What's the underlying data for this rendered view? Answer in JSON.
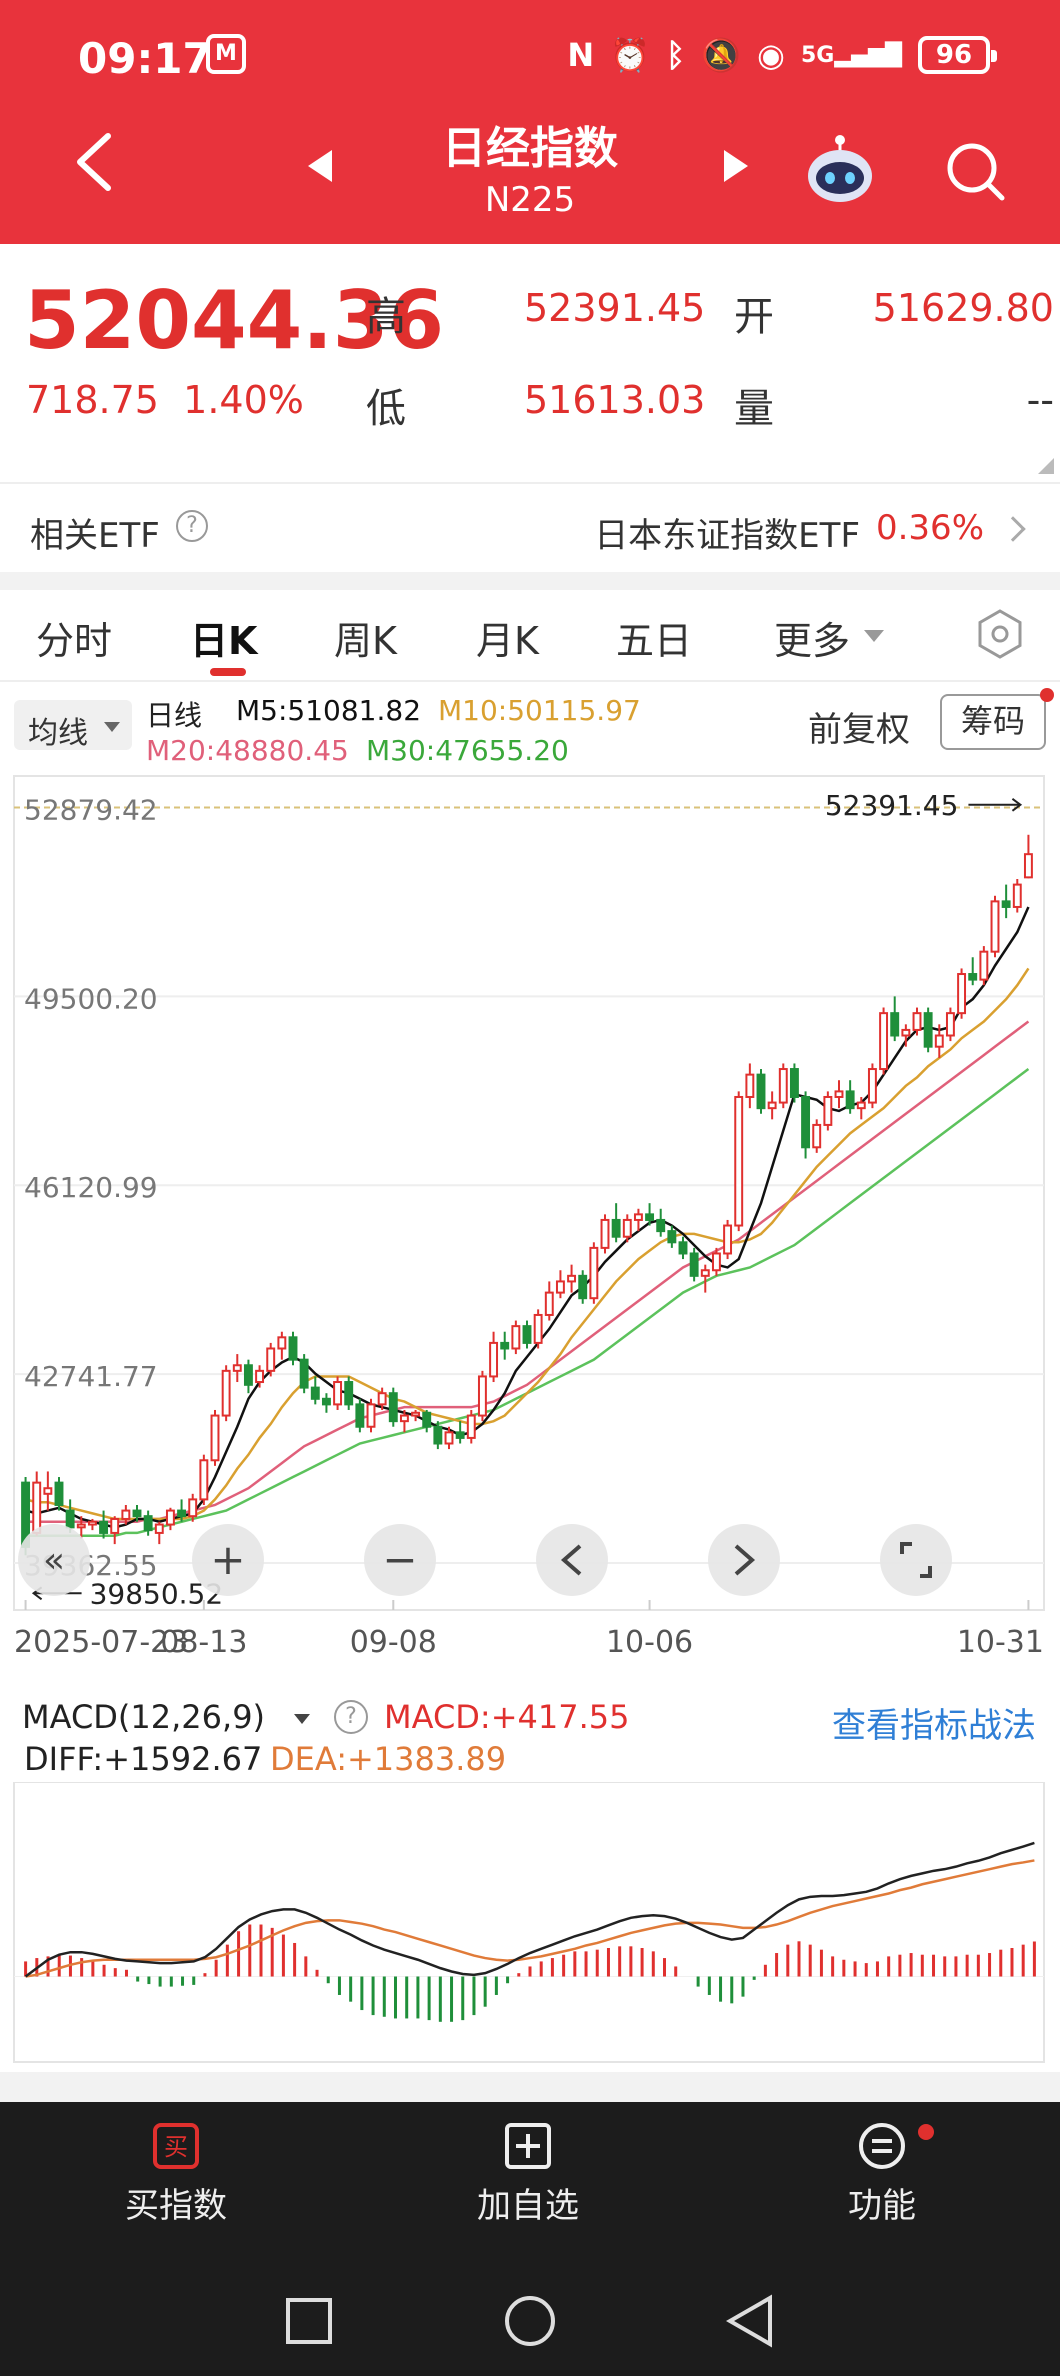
{
  "status_bar": {
    "time": "09:17",
    "carrier_icon": "china-mobile-icon",
    "signal_label": "5G",
    "battery": "96"
  },
  "nav": {
    "title": "日经指数",
    "subtitle": "N225"
  },
  "quote": {
    "price": "52044.36",
    "change": "718.75",
    "change_pct": "1.40%",
    "high_label": "高",
    "high": "52391.45",
    "open_label": "开",
    "open": "51629.80",
    "low_label": "低",
    "low": "51613.03",
    "volume_label": "量",
    "volume": "--"
  },
  "etf": {
    "label": "相关ETF",
    "help": "?",
    "name": "日本东证指数ETF",
    "pct": "0.36%"
  },
  "tabs": [
    {
      "label": "分时"
    },
    {
      "label": "日K"
    },
    {
      "label": "周K"
    },
    {
      "label": "月K"
    },
    {
      "label": "五日"
    },
    {
      "label": "更多"
    }
  ],
  "ma_bar": {
    "selector": "均线",
    "period": "日线",
    "m5": "M5:51081.82",
    "m10": "M10:50115.97",
    "m20": "M20:48880.45",
    "m30": "M30:47655.20",
    "adjust": "前复权",
    "chips": "筹码"
  },
  "colors": {
    "up": "#e0302e",
    "down": "#1f8f3a",
    "m5": "#111111",
    "m10": "#d9a030",
    "m20": "#e0607a",
    "m30": "#5cc25c",
    "header": "#e8333c"
  },
  "chart_data": {
    "type": "candlestick",
    "y_tick_labels": [
      "52879.42",
      "49500.20",
      "46120.99",
      "42741.77",
      "39362.55"
    ],
    "y_ticks": [
      52879.42,
      49500.2,
      46120.99,
      42741.77,
      39362.55
    ],
    "x_tick_labels": [
      "2025-07-23",
      "08-13",
      "09-08",
      "10-06",
      "10-31"
    ],
    "max_label": "52391.45",
    "min_label": "39850.52",
    "ylim": [
      38700,
      53300
    ],
    "candles": [
      [
        40800,
        40900,
        39500,
        39650
      ],
      [
        39900,
        41000,
        39850,
        40800
      ],
      [
        40600,
        41000,
        40300,
        40700
      ],
      [
        40800,
        40900,
        40300,
        40400
      ],
      [
        40300,
        40500,
        39900,
        40000
      ],
      [
        40000,
        40200,
        39800,
        40050
      ],
      [
        40050,
        40150,
        39950,
        40100
      ],
      [
        40100,
        40300,
        39800,
        39900
      ],
      [
        39900,
        40200,
        39700,
        40150
      ],
      [
        40150,
        40400,
        40050,
        40300
      ],
      [
        40300,
        40400,
        40100,
        40200
      ],
      [
        40200,
        40300,
        39850,
        39950
      ],
      [
        39900,
        40100,
        39700,
        40050
      ],
      [
        40050,
        40350,
        39950,
        40300
      ],
      [
        40300,
        40500,
        40100,
        40200
      ],
      [
        40200,
        40600,
        40100,
        40500
      ],
      [
        40500,
        41300,
        40400,
        41200
      ],
      [
        41200,
        42100,
        41100,
        42000
      ],
      [
        42000,
        42900,
        41900,
        42800
      ],
      [
        42800,
        43100,
        42600,
        42900
      ],
      [
        42900,
        43000,
        42400,
        42550
      ],
      [
        42600,
        42900,
        42500,
        42800
      ],
      [
        42800,
        43300,
        42700,
        43200
      ],
      [
        43200,
        43500,
        43000,
        43400
      ],
      [
        43400,
        43500,
        42900,
        43000
      ],
      [
        43000,
        43100,
        42400,
        42500
      ],
      [
        42500,
        42700,
        42200,
        42300
      ],
      [
        42300,
        42400,
        42050,
        42200
      ],
      [
        42200,
        42700,
        42100,
        42600
      ],
      [
        42600,
        42700,
        42100,
        42200
      ],
      [
        42200,
        42300,
        41700,
        41800
      ],
      [
        41800,
        42300,
        41700,
        42200
      ],
      [
        42200,
        42500,
        42100,
        42400
      ],
      [
        42400,
        42500,
        41800,
        41900
      ],
      [
        41900,
        42100,
        41700,
        42000
      ],
      [
        42000,
        42100,
        41900,
        42050
      ],
      [
        42050,
        42100,
        41700,
        41800
      ],
      [
        41800,
        41900,
        41400,
        41500
      ],
      [
        41500,
        41800,
        41400,
        41700
      ],
      [
        41700,
        41900,
        41500,
        41600
      ],
      [
        41600,
        42100,
        41500,
        42000
      ],
      [
        42000,
        42800,
        41900,
        42700
      ],
      [
        42700,
        43500,
        42600,
        43300
      ],
      [
        43300,
        43500,
        43000,
        43200
      ],
      [
        43200,
        43700,
        43100,
        43600
      ],
      [
        43600,
        43700,
        43200,
        43300
      ],
      [
        43300,
        43900,
        43200,
        43800
      ],
      [
        43800,
        44400,
        43700,
        44200
      ],
      [
        44200,
        44600,
        44100,
        44400
      ],
      [
        44400,
        44700,
        44200,
        44500
      ],
      [
        44500,
        44600,
        44000,
        44100
      ],
      [
        44100,
        45100,
        44000,
        45000
      ],
      [
        45000,
        45600,
        44900,
        45500
      ],
      [
        45500,
        45800,
        45100,
        45200
      ],
      [
        45200,
        45600,
        45100,
        45500
      ],
      [
        45500,
        45700,
        45300,
        45600
      ],
      [
        45600,
        45800,
        45400,
        45500
      ],
      [
        45500,
        45700,
        45200,
        45300
      ],
      [
        45300,
        45400,
        45000,
        45100
      ],
      [
        45100,
        45200,
        44800,
        44900
      ],
      [
        44900,
        45000,
        44400,
        44500
      ],
      [
        44500,
        44700,
        44200,
        44600
      ],
      [
        44600,
        45000,
        44500,
        44900
      ],
      [
        44900,
        45500,
        44800,
        45400
      ],
      [
        45400,
        47800,
        45300,
        47700
      ],
      [
        47700,
        48300,
        47500,
        48100
      ],
      [
        48100,
        48200,
        47400,
        47500
      ],
      [
        47500,
        47800,
        47300,
        47600
      ],
      [
        47600,
        48300,
        47500,
        48200
      ],
      [
        48200,
        48300,
        47600,
        47700
      ],
      [
        47700,
        47800,
        46600,
        46800
      ],
      [
        46800,
        47300,
        46700,
        47200
      ],
      [
        47200,
        47800,
        47100,
        47700
      ],
      [
        47700,
        48000,
        47500,
        47800
      ],
      [
        47800,
        48000,
        47400,
        47500
      ],
      [
        47500,
        47700,
        47300,
        47600
      ],
      [
        47600,
        48300,
        47500,
        48200
      ],
      [
        48200,
        49300,
        48100,
        49200
      ],
      [
        49200,
        49500,
        48700,
        48800
      ],
      [
        48800,
        49000,
        48600,
        48900
      ],
      [
        48900,
        49300,
        48800,
        49200
      ],
      [
        49200,
        49300,
        48500,
        48600
      ],
      [
        48600,
        49000,
        48400,
        48800
      ],
      [
        48800,
        49300,
        48700,
        49200
      ],
      [
        49200,
        50000,
        49100,
        49900
      ],
      [
        49900,
        50200,
        49700,
        49800
      ],
      [
        49800,
        50400,
        49700,
        50300
      ],
      [
        50300,
        51300,
        50200,
        51200
      ],
      [
        51200,
        51500,
        50900,
        51100
      ],
      [
        51100,
        51600,
        51000,
        51500
      ],
      [
        51629.8,
        52391.45,
        51613.03,
        52044.36
      ]
    ],
    "ma5": [
      40300,
      40250,
      40300,
      40350,
      40250,
      40150,
      40100,
      40050,
      40000,
      40050,
      40150,
      40150,
      40100,
      40150,
      40200,
      40250,
      40500,
      40900,
      41350,
      41800,
      42300,
      42600,
      42800,
      42950,
      43050,
      42950,
      42750,
      42600,
      42450,
      42400,
      42300,
      42200,
      42150,
      42100,
      42050,
      42000,
      41900,
      41800,
      41750,
      41650,
      41700,
      41850,
      42100,
      42400,
      42800,
      43050,
      43300,
      43550,
      43850,
      44150,
      44300,
      44500,
      44750,
      44950,
      45150,
      45300,
      45450,
      45500,
      45400,
      45250,
      45050,
      44850,
      44700,
      44650,
      44800,
      45300,
      45800,
      46450,
      47100,
      47750,
      47700,
      47650,
      47500,
      47450,
      47550,
      47600,
      47800,
      48100,
      48400,
      48700,
      48900,
      48950,
      48900,
      48950,
      49300,
      49450,
      49700,
      50050,
      50350,
      50650,
      51100
    ],
    "ma10": [
      40500,
      40450,
      40450,
      40400,
      40350,
      40300,
      40250,
      40200,
      40150,
      40150,
      40150,
      40150,
      40150,
      40150,
      40150,
      40200,
      40300,
      40500,
      40750,
      41050,
      41300,
      41600,
      41850,
      42150,
      42400,
      42600,
      42700,
      42700,
      42700,
      42700,
      42600,
      42500,
      42400,
      42300,
      42250,
      42150,
      42050,
      42000,
      41950,
      41900,
      41850,
      41850,
      41900,
      42000,
      42200,
      42400,
      42600,
      42850,
      43100,
      43400,
      43650,
      43900,
      44150,
      44400,
      44600,
      44800,
      44950,
      45100,
      45200,
      45250,
      45250,
      45200,
      45150,
      45100,
      45100,
      45150,
      45250,
      45450,
      45700,
      45950,
      46200,
      46450,
      46650,
      46850,
      47050,
      47200,
      47350,
      47500,
      47700,
      47900,
      48050,
      48250,
      48400,
      48550,
      48750,
      48900,
      49050,
      49250,
      49450,
      49700,
      50000
    ],
    "ma20": [
      40100,
      40100,
      40100,
      40100,
      40100,
      40100,
      40100,
      40100,
      40100,
      40100,
      40100,
      40150,
      40150,
      40200,
      40250,
      40300,
      40350,
      40400,
      40500,
      40600,
      40700,
      40850,
      41000,
      41150,
      41300,
      41450,
      41550,
      41650,
      41750,
      41850,
      41950,
      42000,
      42050,
      42100,
      42150,
      42150,
      42150,
      42150,
      42150,
      42150,
      42150,
      42200,
      42250,
      42350,
      42450,
      42550,
      42700,
      42850,
      43000,
      43150,
      43300,
      43450,
      43600,
      43750,
      43900,
      44050,
      44200,
      44350,
      44500,
      44650,
      44750,
      44850,
      44950,
      45050,
      45150,
      45300,
      45450,
      45600,
      45750,
      45900,
      46050,
      46200,
      46350,
      46500,
      46650,
      46800,
      46950,
      47100,
      47250,
      47400,
      47550,
      47700,
      47850,
      48000,
      48150,
      48300,
      48450,
      48600,
      48750,
      48900,
      49050
    ],
    "ma30": [
      39850,
      39850,
      39850,
      39850,
      39850,
      39850,
      39850,
      39850,
      39850,
      39900,
      39900,
      39950,
      40000,
      40050,
      40100,
      40150,
      40200,
      40250,
      40300,
      40400,
      40500,
      40600,
      40700,
      40800,
      40900,
      41000,
      41100,
      41200,
      41300,
      41400,
      41500,
      41550,
      41600,
      41650,
      41700,
      41750,
      41800,
      41850,
      41900,
      41950,
      42000,
      42050,
      42100,
      42200,
      42300,
      42400,
      42500,
      42600,
      42700,
      42800,
      42900,
      43000,
      43150,
      43300,
      43450,
      43600,
      43750,
      43900,
      44050,
      44200,
      44300,
      44400,
      44500,
      44550,
      44600,
      44650,
      44750,
      44850,
      44950,
      45050,
      45200,
      45350,
      45500,
      45650,
      45800,
      45950,
      46100,
      46250,
      46400,
      46550,
      46700,
      46850,
      47000,
      47150,
      47300,
      47450,
      47600,
      47750,
      47900,
      48050,
      48200
    ]
  },
  "macd": {
    "title": "MACD(12,26,9)",
    "help": "?",
    "macd_value": "MACD:+417.55",
    "diff": "DIFF:+1592.67",
    "dea": "DEA:+1383.89",
    "link": "查看指标战法",
    "ylim": [
      -900,
      2200
    ],
    "diff_series": [
      0,
      100,
      200,
      260,
      290,
      290,
      270,
      240,
      210,
      190,
      180,
      170,
      160,
      160,
      170,
      180,
      230,
      330,
      460,
      590,
      680,
      740,
      780,
      800,
      800,
      760,
      700,
      630,
      560,
      500,
      430,
      370,
      320,
      280,
      240,
      200,
      150,
      100,
      60,
      30,
      20,
      40,
      90,
      150,
      220,
      280,
      330,
      380,
      430,
      480,
      520,
      560,
      610,
      660,
      700,
      720,
      730,
      720,
      690,
      640,
      580,
      520,
      470,
      440,
      460,
      560,
      660,
      760,
      850,
      920,
      950,
      960,
      960,
      970,
      990,
      1010,
      1050,
      1110,
      1160,
      1200,
      1230,
      1260,
      1280,
      1310,
      1350,
      1380,
      1420,
      1470,
      1510,
      1550,
      1592.67
    ],
    "dea_series": [
      0,
      20,
      60,
      100,
      140,
      170,
      190,
      200,
      200,
      200,
      200,
      200,
      200,
      200,
      200,
      200,
      210,
      230,
      270,
      320,
      370,
      430,
      490,
      550,
      600,
      640,
      660,
      670,
      670,
      650,
      630,
      600,
      560,
      530,
      490,
      450,
      410,
      370,
      330,
      290,
      250,
      220,
      200,
      190,
      200,
      220,
      240,
      270,
      300,
      330,
      370,
      400,
      440,
      480,
      520,
      550,
      580,
      610,
      630,
      640,
      640,
      630,
      620,
      600,
      580,
      580,
      590,
      620,
      660,
      710,
      760,
      800,
      840,
      870,
      900,
      930,
      960,
      990,
      1030,
      1060,
      1100,
      1130,
      1160,
      1190,
      1220,
      1250,
      1280,
      1310,
      1340,
      1360,
      1383.89
    ],
    "hist": [
      180,
      220,
      240,
      260,
      250,
      220,
      180,
      140,
      100,
      80,
      -60,
      -90,
      -120,
      -120,
      -110,
      -100,
      40,
      200,
      380,
      540,
      620,
      620,
      580,
      500,
      400,
      240,
      80,
      -80,
      -220,
      -300,
      -400,
      -460,
      -480,
      -500,
      -500,
      -500,
      -520,
      -540,
      -540,
      -520,
      -460,
      -360,
      -220,
      -80,
      40,
      120,
      180,
      220,
      260,
      300,
      300,
      320,
      340,
      360,
      360,
      340,
      300,
      220,
      120,
      0,
      -120,
      -220,
      -300,
      -320,
      -240,
      -40,
      140,
      280,
      380,
      420,
      380,
      320,
      240,
      200,
      180,
      160,
      180,
      240,
      260,
      280,
      260,
      260,
      240,
      240,
      260,
      260,
      280,
      320,
      340,
      380,
      417.55
    ]
  },
  "bottom_bar": {
    "buy_icon": "buy-icon",
    "buy": "买指数",
    "buy_glyph": "买",
    "add_icon": "plus-box-icon",
    "add": "加自选",
    "func_icon": "menu-circle-icon",
    "func": "功能"
  }
}
